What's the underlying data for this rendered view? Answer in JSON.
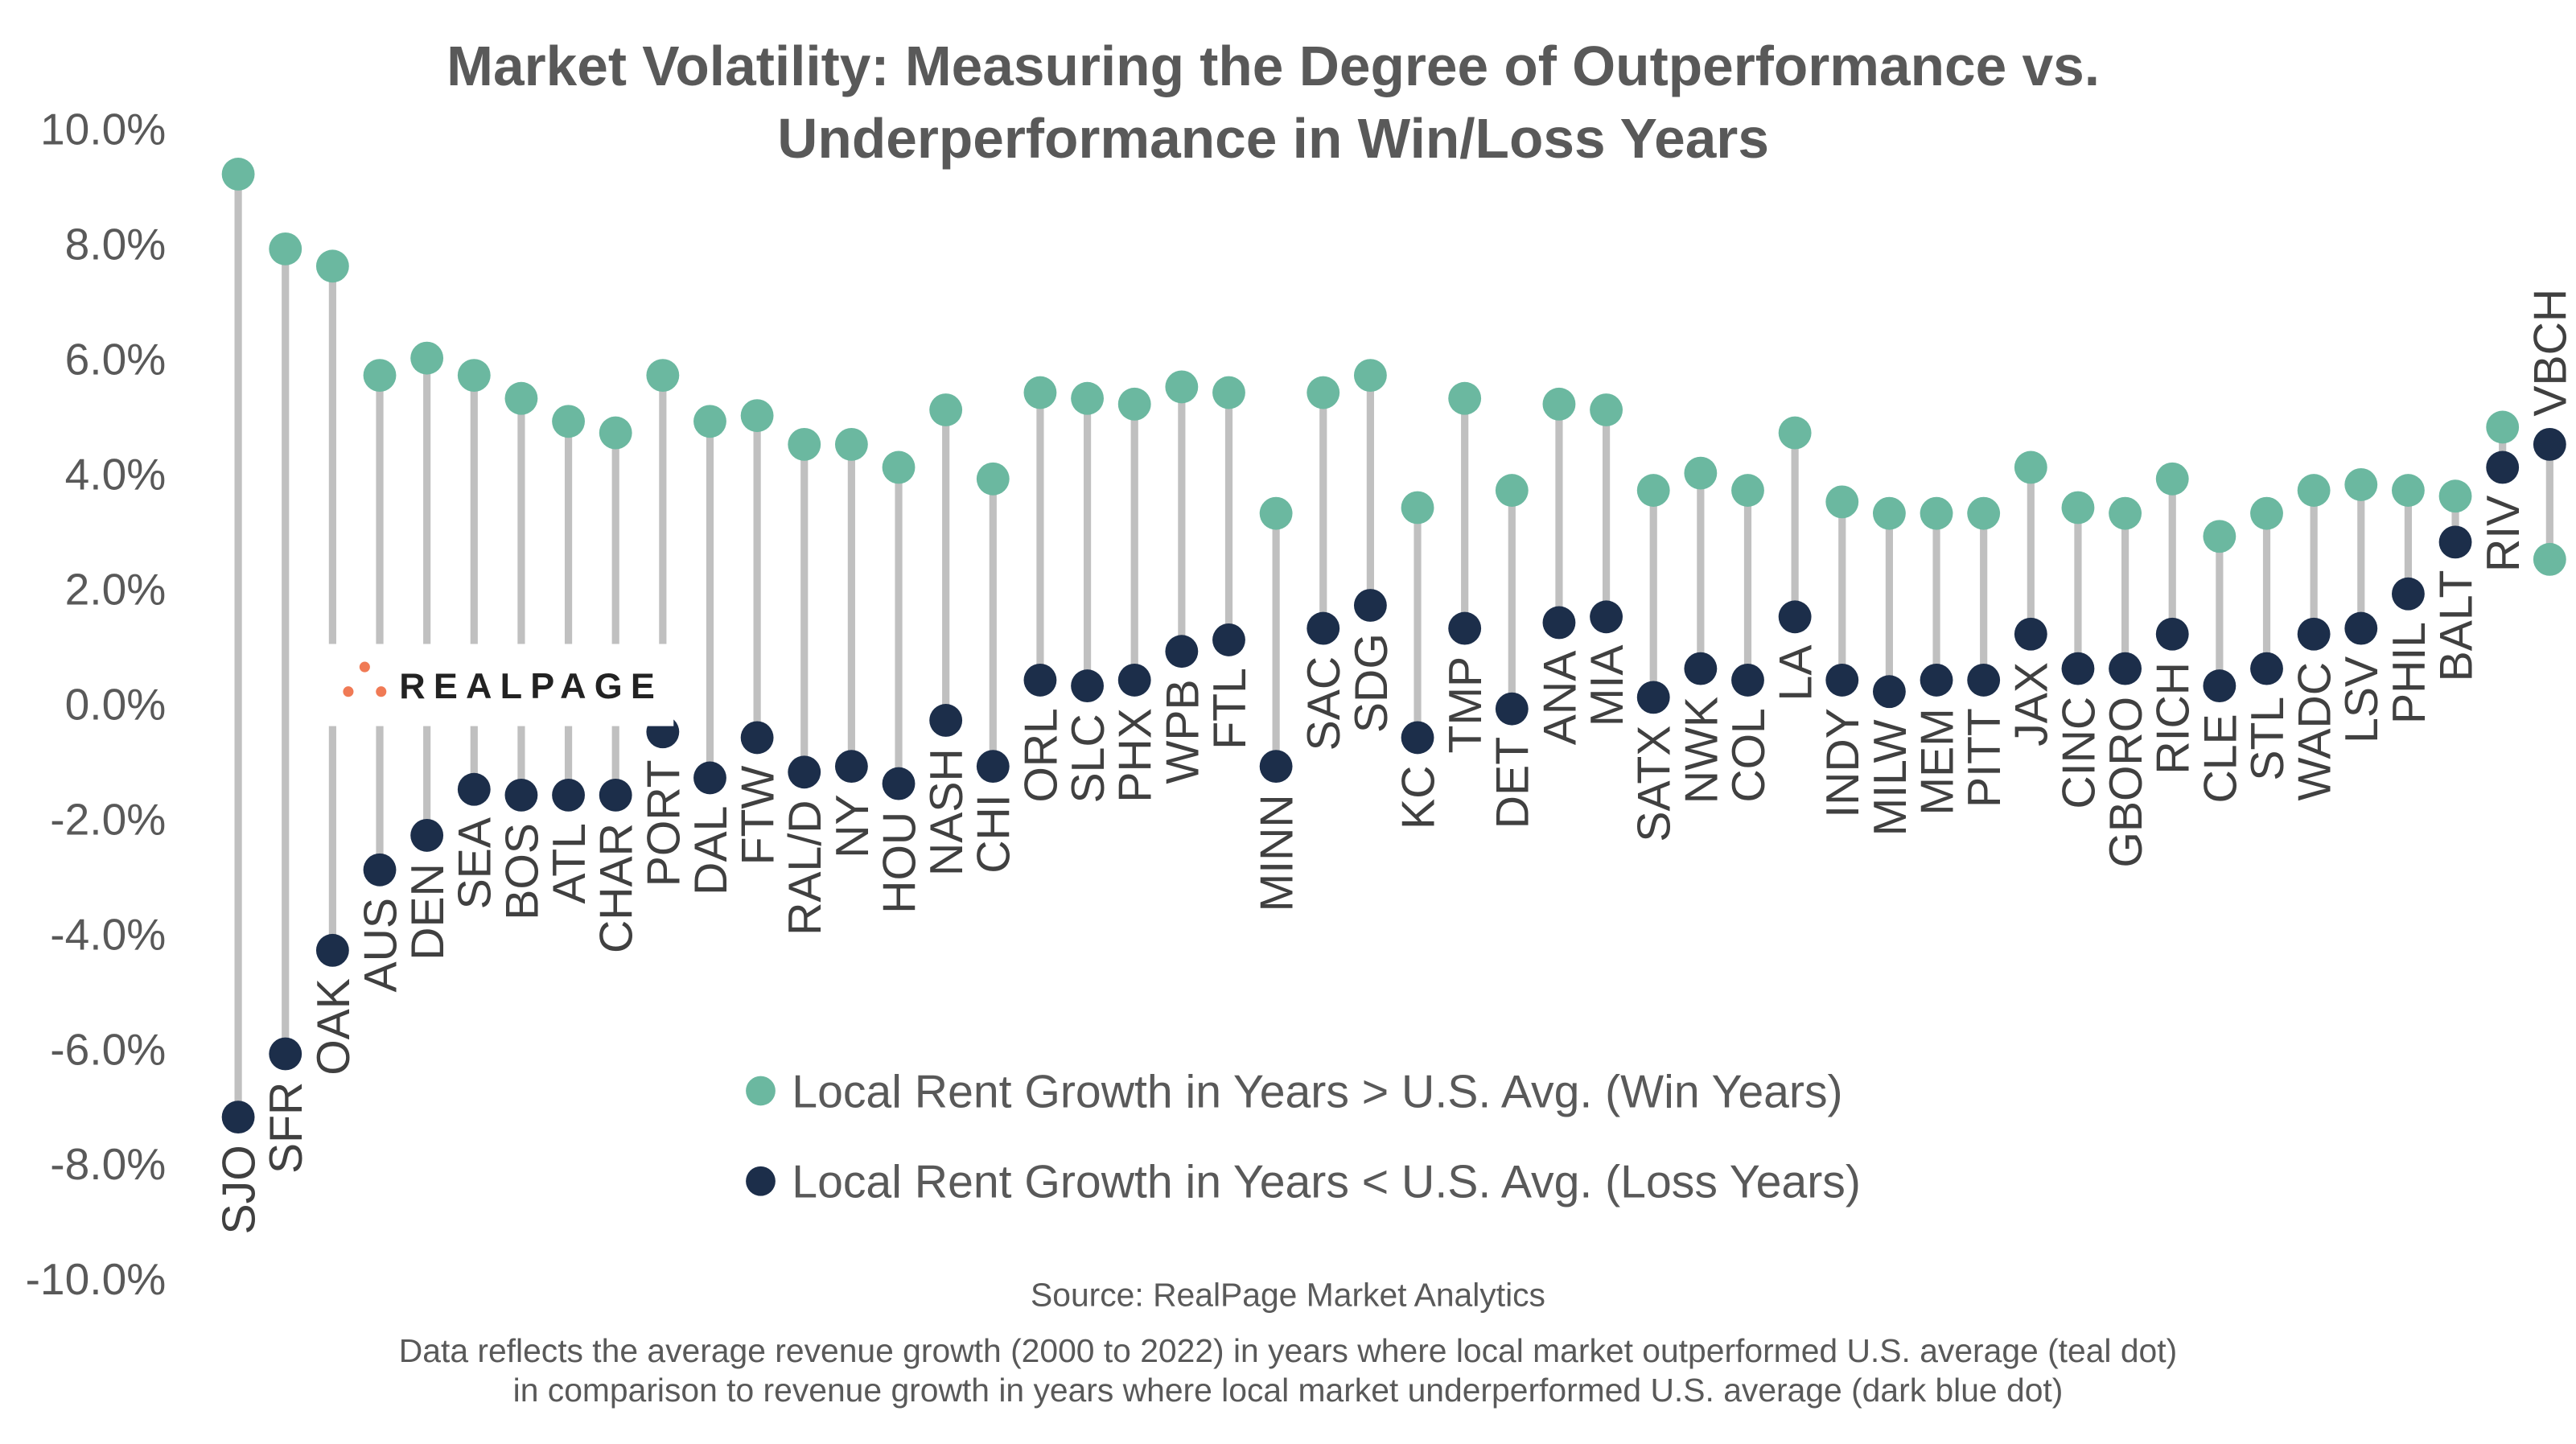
{
  "chart_data": {
    "type": "dot-plot",
    "title_lines": [
      "Market Volatility: Measuring the Degree of  Outperformance vs.",
      "Underperformance in Win/Loss Years"
    ],
    "ylim": [
      -10,
      10
    ],
    "yticks": [
      "10.0%",
      "8.0%",
      "6.0%",
      "4.0%",
      "2.0%",
      "0.0%",
      "-2.0%",
      "-4.0%",
      "-6.0%",
      "-8.0%",
      "-10.0%"
    ],
    "ytick_values": [
      10,
      8,
      6,
      4,
      2,
      0,
      -2,
      -4,
      -6,
      -8,
      -10
    ],
    "grid": false,
    "legend_position": "bottom-center",
    "categories": [
      "SJO",
      "SFR",
      "OAK",
      "AUS",
      "DEN",
      "SEA",
      "BOS",
      "ATL",
      "CHAR",
      "PORT",
      "DAL",
      "FTW",
      "RAL/D",
      "NY",
      "HOU",
      "NASH",
      "CHI",
      "ORL",
      "SLC",
      "PHX",
      "WPB",
      "FTL",
      "MINN",
      "SAC",
      "SDG",
      "KC",
      "TMP",
      "DET",
      "ANA",
      "MIA",
      "SATX",
      "NWK",
      "COL",
      "LA",
      "INDY",
      "MILW",
      "MEM",
      "PITT",
      "JAX",
      "CINC",
      "GBORO",
      "RICH",
      "CLE",
      "STL",
      "WADC",
      "LSV",
      "PHIL",
      "BALT",
      "RIV",
      "VBCH"
    ],
    "series": [
      {
        "name": "Local Rent Growth in Years > U.S. Avg. (Win Years)",
        "color": "#6bb8a0",
        "values": [
          9.2,
          7.9,
          7.6,
          5.7,
          6.0,
          5.7,
          5.3,
          4.9,
          4.7,
          5.7,
          4.9,
          5.0,
          4.5,
          4.5,
          4.1,
          5.1,
          3.9,
          5.4,
          5.3,
          5.2,
          5.5,
          5.4,
          3.3,
          5.4,
          5.7,
          3.4,
          5.3,
          3.7,
          5.2,
          5.1,
          3.7,
          4.0,
          3.7,
          4.7,
          3.5,
          3.3,
          3.3,
          3.3,
          4.1,
          3.4,
          3.3,
          3.9,
          2.9,
          3.3,
          3.7,
          3.8,
          3.7,
          3.6,
          4.8,
          2.5
        ]
      },
      {
        "name": "Local Rent Growth in Years < U.S. Avg. (Loss Years)",
        "color": "#1c2e4a",
        "values": [
          -7.2,
          -6.1,
          -4.3,
          -2.9,
          -2.3,
          -1.5,
          -1.6,
          -1.6,
          -1.6,
          -0.5,
          -1.3,
          -0.6,
          -1.2,
          -1.1,
          -1.4,
          -0.3,
          -1.1,
          0.4,
          0.3,
          0.4,
          0.9,
          1.1,
          -1.1,
          1.3,
          1.7,
          -0.6,
          1.3,
          -0.1,
          1.4,
          1.5,
          0.1,
          0.6,
          0.4,
          1.5,
          0.4,
          0.2,
          0.4,
          0.4,
          1.2,
          0.6,
          0.6,
          1.2,
          0.3,
          0.6,
          1.2,
          1.3,
          1.9,
          2.8,
          4.1,
          4.5
        ]
      }
    ],
    "stem_color": "#c0c0c0",
    "source": "Source: RealPage Market Analytics",
    "notes": [
      "Data reflects the average revenue growth (2000 to 2022) in years where local market outperformed U.S. average (teal dot)",
      "in comparison to revenue growth in years where local market underperformed U.S. average (dark blue dot)"
    ]
  },
  "logo": {
    "text": "REALPAGE",
    "color": "#f07a55"
  }
}
